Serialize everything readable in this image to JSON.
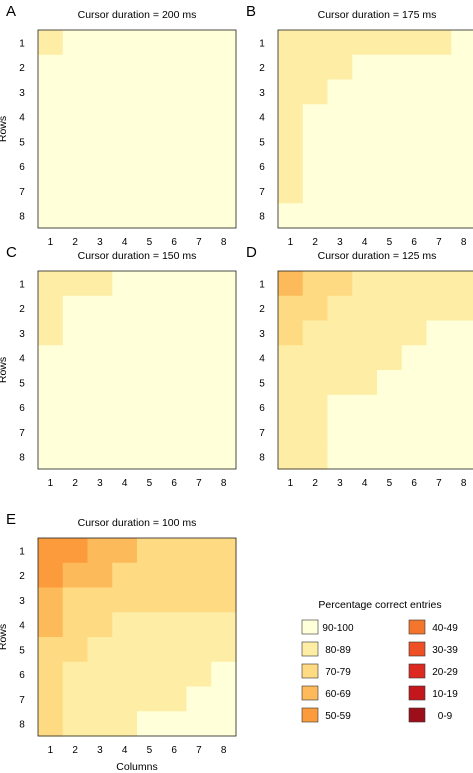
{
  "figure": {
    "legend": {
      "title": "Percentage correct entries",
      "entries": [
        {
          "label": "90-100",
          "color": "#FFFFD9"
        },
        {
          "label": "80-89",
          "color": "#FEEDA5"
        },
        {
          "label": "70-79",
          "color": "#FEDB82"
        },
        {
          "label": "60-69",
          "color": "#FCBA5A"
        },
        {
          "label": "50-59",
          "color": "#FB9B3C"
        },
        {
          "label": "40-49",
          "color": "#F4762C"
        },
        {
          "label": "30-39",
          "color": "#EE4F25"
        },
        {
          "label": "20-29",
          "color": "#DC2A21"
        },
        {
          "label": "10-19",
          "color": "#C4161D"
        },
        {
          "label": "0-9",
          "color": "#9C0E19"
        }
      ]
    }
  },
  "chart_data": [
    {
      "type": "heatmap",
      "panel_label": "A",
      "title": "Cursor duration = 200 ms",
      "ylabel": "Rows",
      "xlabel": "",
      "x_ticks": [
        "1",
        "2",
        "3",
        "4",
        "5",
        "6",
        "7",
        "8"
      ],
      "y_ticks": [
        "1",
        "2",
        "3",
        "4",
        "5",
        "6",
        "7",
        "8"
      ],
      "bins": [
        [
          "80-89",
          "90-100",
          "90-100",
          "90-100",
          "90-100",
          "90-100",
          "90-100",
          "90-100"
        ],
        [
          "90-100",
          "90-100",
          "90-100",
          "90-100",
          "90-100",
          "90-100",
          "90-100",
          "90-100"
        ],
        [
          "90-100",
          "90-100",
          "90-100",
          "90-100",
          "90-100",
          "90-100",
          "90-100",
          "90-100"
        ],
        [
          "90-100",
          "90-100",
          "90-100",
          "90-100",
          "90-100",
          "90-100",
          "90-100",
          "90-100"
        ],
        [
          "90-100",
          "90-100",
          "90-100",
          "90-100",
          "90-100",
          "90-100",
          "90-100",
          "90-100"
        ],
        [
          "90-100",
          "90-100",
          "90-100",
          "90-100",
          "90-100",
          "90-100",
          "90-100",
          "90-100"
        ],
        [
          "90-100",
          "90-100",
          "90-100",
          "90-100",
          "90-100",
          "90-100",
          "90-100",
          "90-100"
        ],
        [
          "90-100",
          "90-100",
          "90-100",
          "90-100",
          "90-100",
          "90-100",
          "90-100",
          "90-100"
        ]
      ]
    },
    {
      "type": "heatmap",
      "panel_label": "B",
      "title": "Cursor duration = 175 ms",
      "ylabel": "",
      "xlabel": "",
      "x_ticks": [
        "1",
        "2",
        "3",
        "4",
        "5",
        "6",
        "7",
        "8"
      ],
      "y_ticks": [
        "1",
        "2",
        "3",
        "4",
        "5",
        "6",
        "7",
        "8"
      ],
      "bins": [
        [
          "80-89",
          "80-89",
          "80-89",
          "80-89",
          "80-89",
          "80-89",
          "80-89",
          "90-100"
        ],
        [
          "80-89",
          "80-89",
          "80-89",
          "90-100",
          "90-100",
          "90-100",
          "90-100",
          "90-100"
        ],
        [
          "80-89",
          "80-89",
          "90-100",
          "90-100",
          "90-100",
          "90-100",
          "90-100",
          "90-100"
        ],
        [
          "80-89",
          "90-100",
          "90-100",
          "90-100",
          "90-100",
          "90-100",
          "90-100",
          "90-100"
        ],
        [
          "80-89",
          "90-100",
          "90-100",
          "90-100",
          "90-100",
          "90-100",
          "90-100",
          "90-100"
        ],
        [
          "80-89",
          "90-100",
          "90-100",
          "90-100",
          "90-100",
          "90-100",
          "90-100",
          "90-100"
        ],
        [
          "80-89",
          "90-100",
          "90-100",
          "90-100",
          "90-100",
          "90-100",
          "90-100",
          "90-100"
        ],
        [
          "90-100",
          "90-100",
          "90-100",
          "90-100",
          "90-100",
          "90-100",
          "90-100",
          "90-100"
        ]
      ]
    },
    {
      "type": "heatmap",
      "panel_label": "C",
      "title": "Cursor duration = 150 ms",
      "ylabel": "Rows",
      "xlabel": "",
      "x_ticks": [
        "1",
        "2",
        "3",
        "4",
        "5",
        "6",
        "7",
        "8"
      ],
      "y_ticks": [
        "1",
        "2",
        "3",
        "4",
        "5",
        "6",
        "7",
        "8"
      ],
      "bins": [
        [
          "80-89",
          "80-89",
          "80-89",
          "90-100",
          "90-100",
          "90-100",
          "90-100",
          "90-100"
        ],
        [
          "80-89",
          "90-100",
          "90-100",
          "90-100",
          "90-100",
          "90-100",
          "90-100",
          "90-100"
        ],
        [
          "80-89",
          "90-100",
          "90-100",
          "90-100",
          "90-100",
          "90-100",
          "90-100",
          "90-100"
        ],
        [
          "90-100",
          "90-100",
          "90-100",
          "90-100",
          "90-100",
          "90-100",
          "90-100",
          "90-100"
        ],
        [
          "90-100",
          "90-100",
          "90-100",
          "90-100",
          "90-100",
          "90-100",
          "90-100",
          "90-100"
        ],
        [
          "90-100",
          "90-100",
          "90-100",
          "90-100",
          "90-100",
          "90-100",
          "90-100",
          "90-100"
        ],
        [
          "90-100",
          "90-100",
          "90-100",
          "90-100",
          "90-100",
          "90-100",
          "90-100",
          "90-100"
        ],
        [
          "90-100",
          "90-100",
          "90-100",
          "90-100",
          "90-100",
          "90-100",
          "90-100",
          "90-100"
        ]
      ]
    },
    {
      "type": "heatmap",
      "panel_label": "D",
      "title": "Cursor duration = 125 ms",
      "ylabel": "",
      "xlabel": "",
      "x_ticks": [
        "1",
        "2",
        "3",
        "4",
        "5",
        "6",
        "7",
        "8"
      ],
      "y_ticks": [
        "1",
        "2",
        "3",
        "4",
        "5",
        "6",
        "7",
        "8"
      ],
      "bins": [
        [
          "60-69",
          "70-79",
          "70-79",
          "80-89",
          "80-89",
          "80-89",
          "80-89",
          "80-89"
        ],
        [
          "70-79",
          "70-79",
          "80-89",
          "80-89",
          "80-89",
          "80-89",
          "80-89",
          "80-89"
        ],
        [
          "70-79",
          "80-89",
          "80-89",
          "80-89",
          "80-89",
          "80-89",
          "90-100",
          "90-100"
        ],
        [
          "80-89",
          "80-89",
          "80-89",
          "80-89",
          "80-89",
          "90-100",
          "90-100",
          "90-100"
        ],
        [
          "80-89",
          "80-89",
          "80-89",
          "80-89",
          "90-100",
          "90-100",
          "90-100",
          "90-100"
        ],
        [
          "80-89",
          "80-89",
          "90-100",
          "90-100",
          "90-100",
          "90-100",
          "90-100",
          "90-100"
        ],
        [
          "80-89",
          "80-89",
          "90-100",
          "90-100",
          "90-100",
          "90-100",
          "90-100",
          "90-100"
        ],
        [
          "80-89",
          "80-89",
          "90-100",
          "90-100",
          "90-100",
          "90-100",
          "90-100",
          "90-100"
        ]
      ]
    },
    {
      "type": "heatmap",
      "panel_label": "E",
      "title": "Cursor duration = 100 ms",
      "ylabel": "Rows",
      "xlabel": "Columns",
      "x_ticks": [
        "1",
        "2",
        "3",
        "4",
        "5",
        "6",
        "7",
        "8"
      ],
      "y_ticks": [
        "1",
        "2",
        "3",
        "4",
        "5",
        "6",
        "7",
        "8"
      ],
      "bins": [
        [
          "50-59",
          "50-59",
          "60-69",
          "60-69",
          "70-79",
          "70-79",
          "70-79",
          "70-79"
        ],
        [
          "50-59",
          "60-69",
          "60-69",
          "70-79",
          "70-79",
          "70-79",
          "70-79",
          "70-79"
        ],
        [
          "60-69",
          "70-79",
          "70-79",
          "70-79",
          "70-79",
          "70-79",
          "70-79",
          "70-79"
        ],
        [
          "60-69",
          "70-79",
          "70-79",
          "80-89",
          "80-89",
          "80-89",
          "80-89",
          "80-89"
        ],
        [
          "70-79",
          "70-79",
          "80-89",
          "80-89",
          "80-89",
          "80-89",
          "80-89",
          "80-89"
        ],
        [
          "70-79",
          "80-89",
          "80-89",
          "80-89",
          "80-89",
          "80-89",
          "80-89",
          "90-100"
        ],
        [
          "70-79",
          "80-89",
          "80-89",
          "80-89",
          "80-89",
          "80-89",
          "90-100",
          "90-100"
        ],
        [
          "70-79",
          "80-89",
          "80-89",
          "80-89",
          "90-100",
          "90-100",
          "90-100",
          "90-100"
        ]
      ]
    }
  ]
}
